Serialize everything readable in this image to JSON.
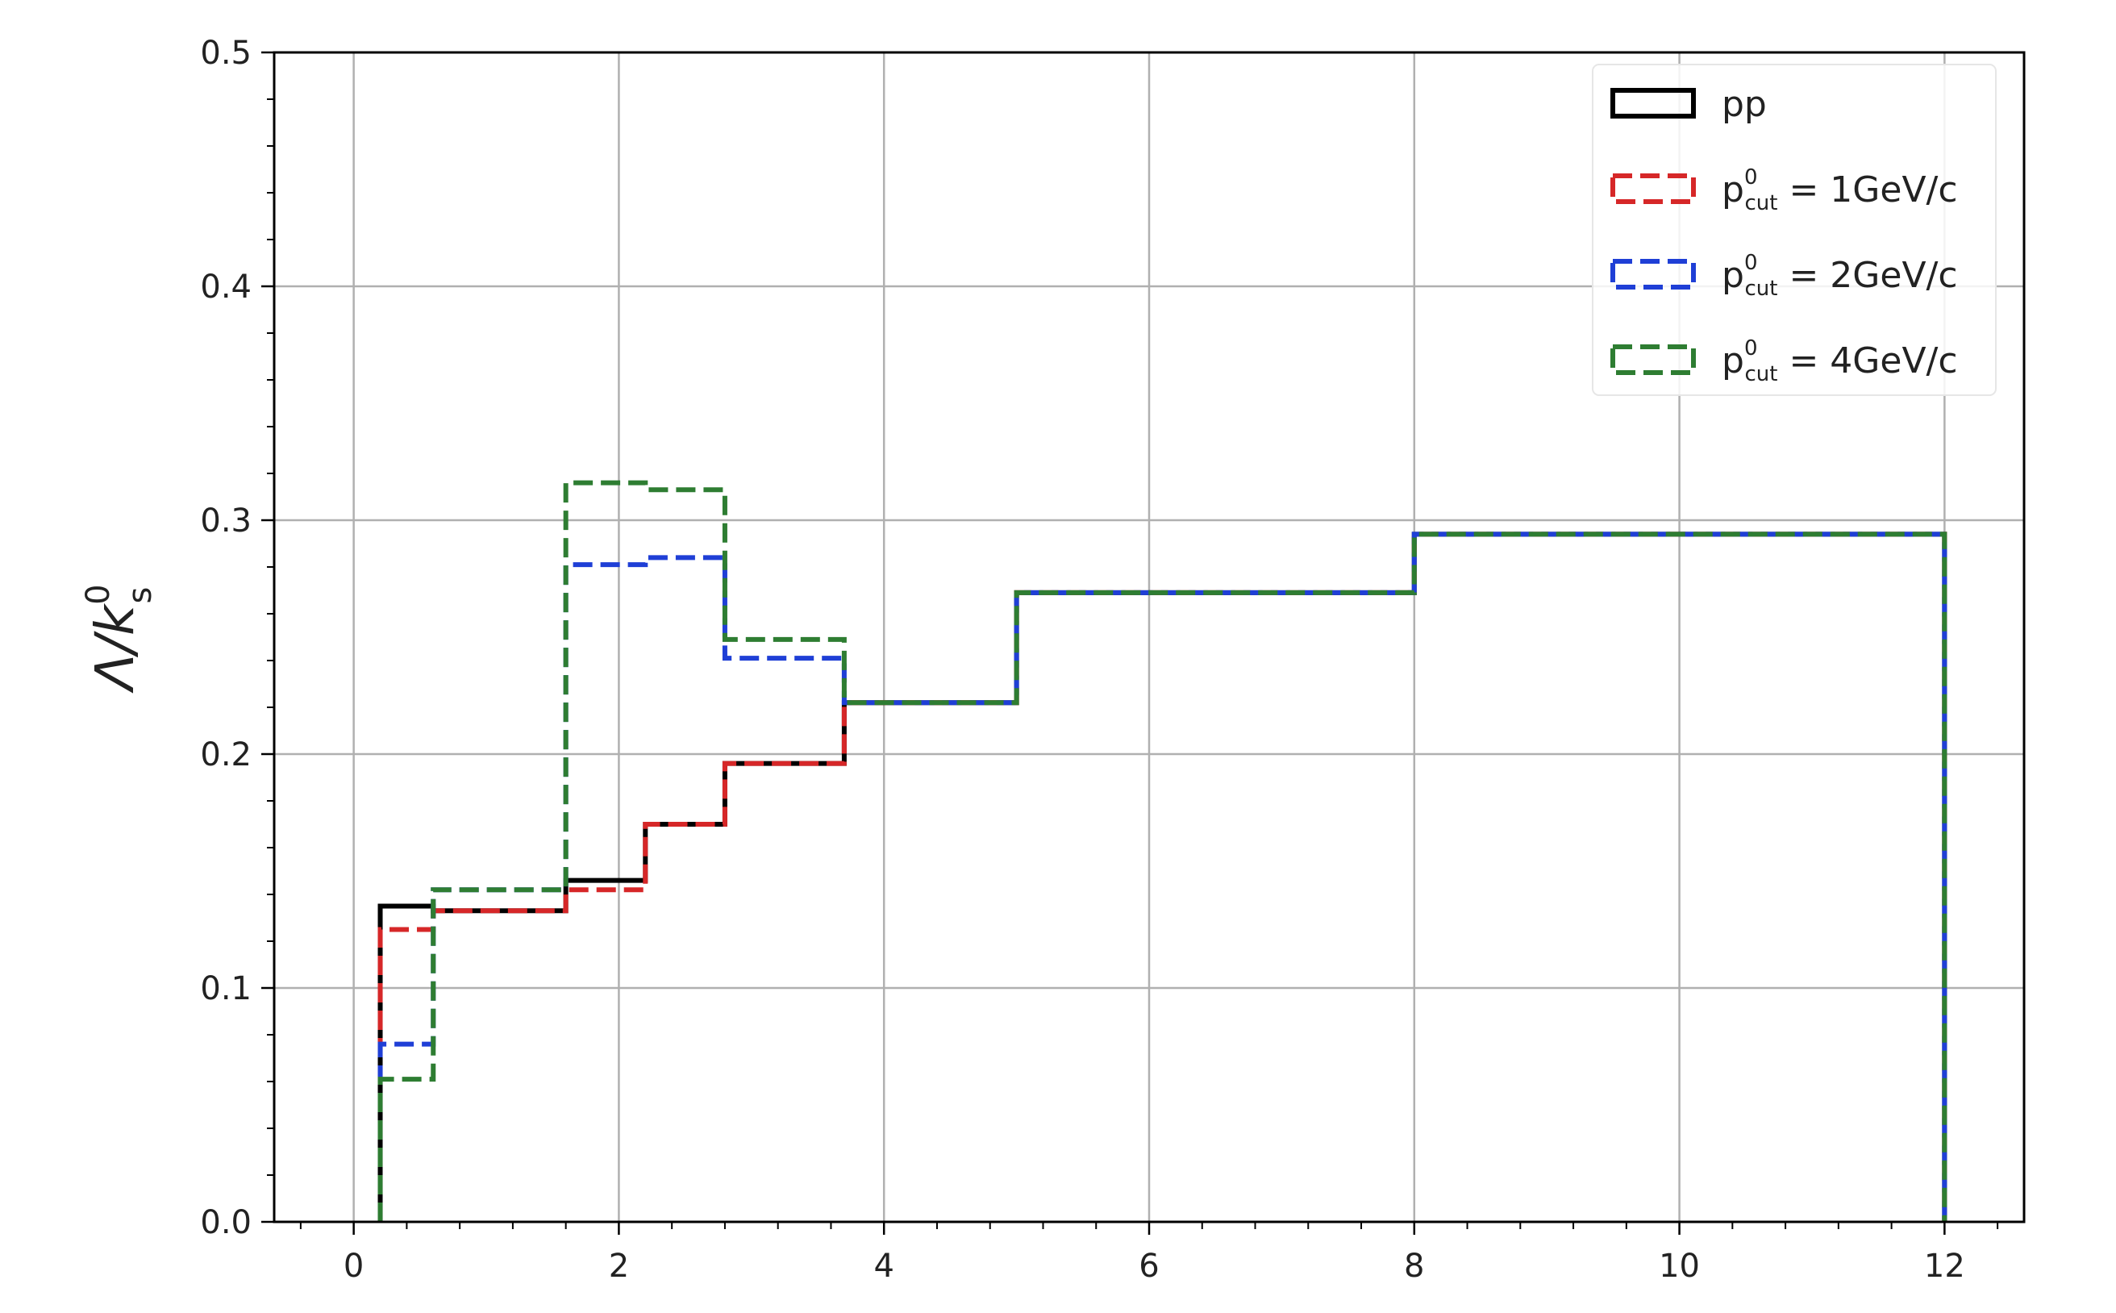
{
  "chart_data": {
    "type": "line",
    "drawstyle": "steps-post",
    "title": "",
    "xlabel": "",
    "ylabel": {
      "main": "Λ/k",
      "sup": "0",
      "sub": "s"
    },
    "xlim": [
      -0.6,
      12.6
    ],
    "ylim": [
      0,
      0.5
    ],
    "xticks": [
      0,
      2,
      4,
      6,
      8,
      10,
      12
    ],
    "yticks": [
      0.0,
      0.1,
      0.2,
      0.3,
      0.4,
      0.5
    ],
    "xtick_labels": [
      "0",
      "2",
      "4",
      "6",
      "8",
      "10",
      "12"
    ],
    "ytick_labels": [
      "0.0",
      "0.1",
      "0.2",
      "0.3",
      "0.4",
      "0.5"
    ],
    "grid": true,
    "legend_position": "top-right",
    "bin_edges": [
      0.2,
      0.6,
      1.6,
      2.2,
      2.8,
      3.7,
      5.0,
      8.0,
      12.0
    ],
    "series": [
      {
        "name": "pp",
        "legend": {
          "base": "pp"
        },
        "color": "#000000",
        "dashed": false,
        "values": [
          0.135,
          0.133,
          0.146,
          0.17,
          0.196,
          0.222,
          0.269,
          0.294
        ]
      },
      {
        "name": "p_cut^0 = 1GeV/c",
        "legend": {
          "base": "p",
          "sup": "0",
          "sub": "cut",
          "rest": " = 1GeV/c"
        },
        "color": "#d62728",
        "dashed": true,
        "values": [
          0.125,
          0.133,
          0.142,
          0.17,
          0.196,
          0.222,
          0.269,
          0.294
        ]
      },
      {
        "name": "p_cut^0 = 2GeV/c",
        "legend": {
          "base": "p",
          "sup": "0",
          "sub": "cut",
          "rest": " = 2GeV/c"
        },
        "color": "#1f3fd6",
        "dashed": true,
        "values": [
          0.076,
          0.142,
          0.281,
          0.284,
          0.241,
          0.222,
          0.269,
          0.294
        ]
      },
      {
        "name": "p_cut^0 = 4GeV/c",
        "legend": {
          "base": "p",
          "sup": "0",
          "sub": "cut",
          "rest": " = 4GeV/c"
        },
        "color": "#2e7d32",
        "dashed": true,
        "values": [
          0.061,
          0.142,
          0.316,
          0.313,
          0.249,
          0.222,
          0.269,
          0.294
        ]
      }
    ]
  }
}
